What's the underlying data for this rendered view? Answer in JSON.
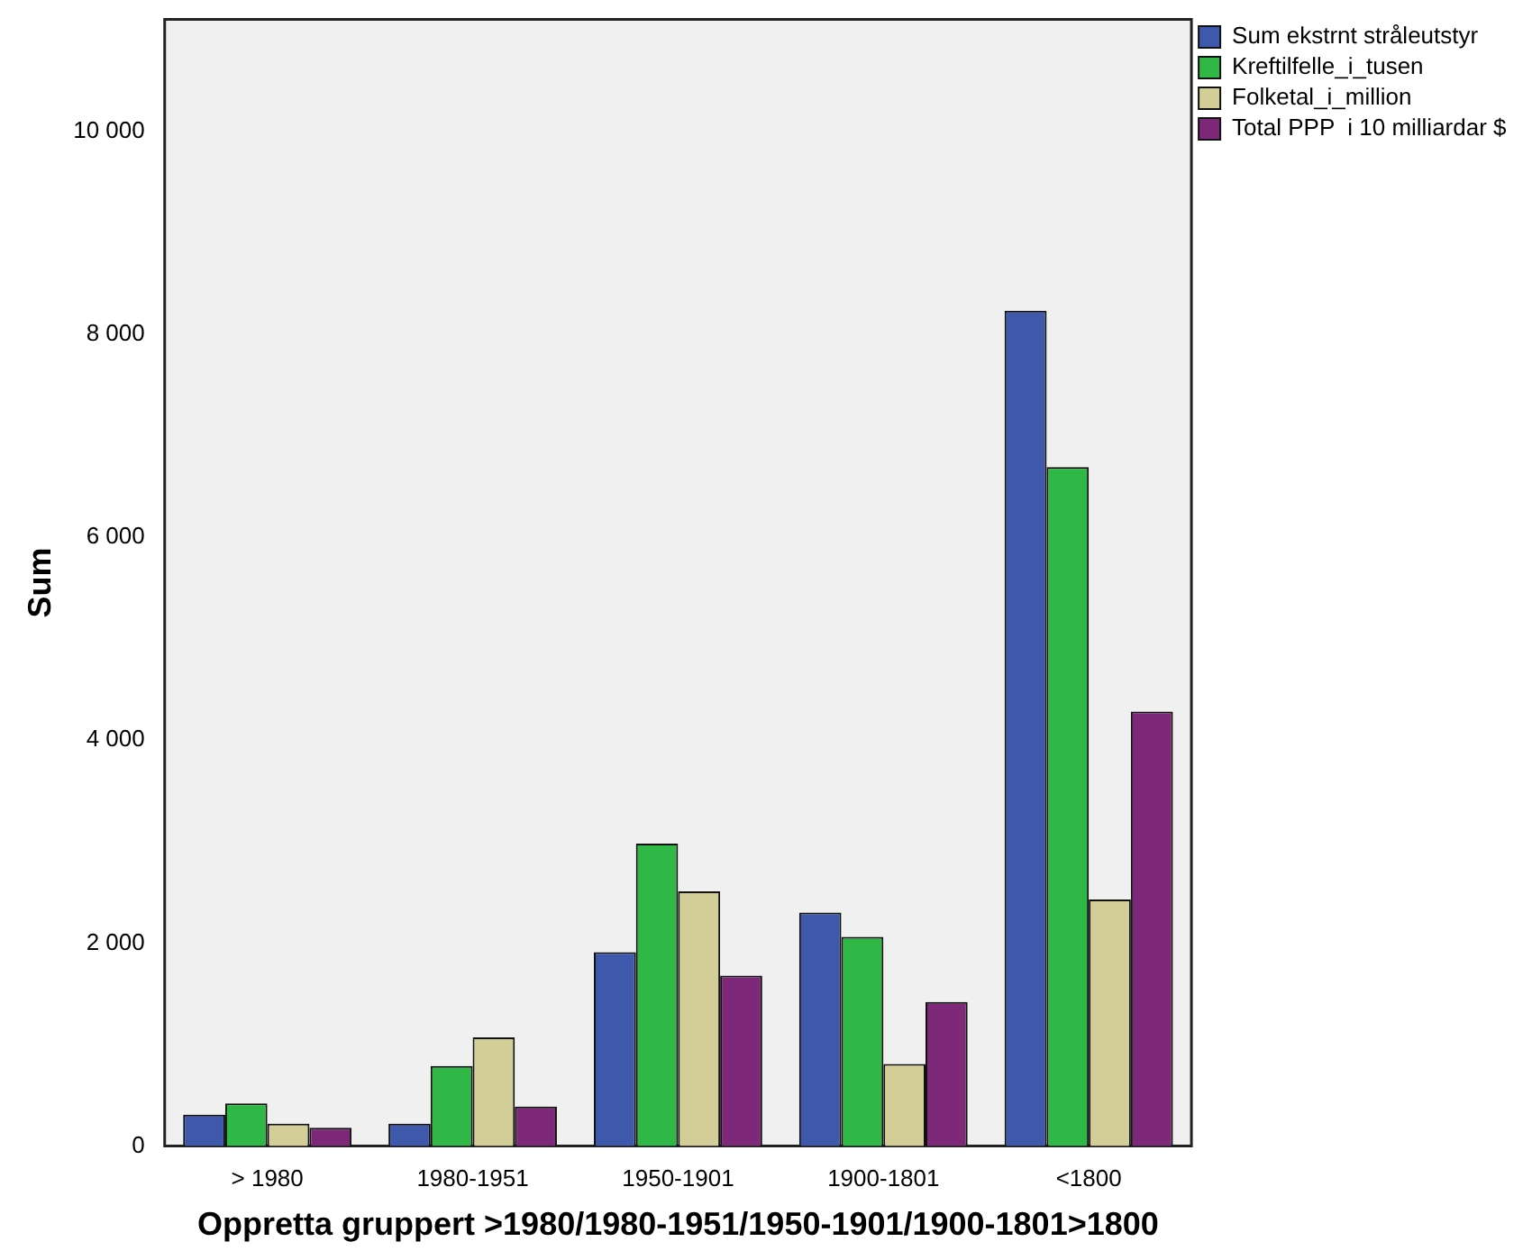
{
  "chart_data": {
    "type": "bar",
    "xlabel": "Oppretta gruppert >1980/1980-1951/1950-1901/1900-1801>1800",
    "ylabel": "Sum",
    "categories": [
      "> 1980",
      "1980-1951",
      "1950-1901",
      "1900-1801",
      "<1800"
    ],
    "series": [
      {
        "name": "Sum ekstrnt stråleutstyr",
        "color": "#3e58ac",
        "values": [
          310,
          220,
          1910,
          2300,
          8230
        ]
      },
      {
        "name": "Kreftilfelle_i_tusen",
        "color": "#2fb845",
        "values": [
          420,
          790,
          2980,
          2060,
          6690
        ]
      },
      {
        "name": "Folketal_i_million",
        "color": "#d3ce97",
        "values": [
          220,
          1070,
          2510,
          810,
          2430
        ]
      },
      {
        "name": "Total PPP  i 10 milliardar $",
        "color": "#7d2879",
        "values": [
          180,
          390,
          1680,
          1420,
          4280
        ]
      }
    ],
    "ylim": [
      0,
      11100
    ],
    "yticks": [
      {
        "value": 0,
        "label": "0"
      },
      {
        "value": 2000,
        "label": "2 000"
      },
      {
        "value": 4000,
        "label": "4 000"
      },
      {
        "value": 6000,
        "label": "6 000"
      },
      {
        "value": 8000,
        "label": "8 000"
      },
      {
        "value": 10000,
        "label": "10 000"
      }
    ],
    "grid": false,
    "legend": "top right"
  }
}
